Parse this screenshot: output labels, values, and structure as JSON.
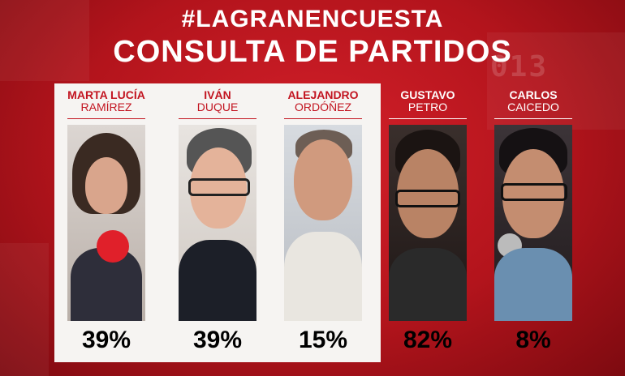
{
  "header": {
    "hashtag": "#LAGRANENCUESTA",
    "title": "CONSULTA DE PARTIDOS"
  },
  "background_digits": "013",
  "candidates": [
    {
      "first": "MARTA LUCÍA",
      "last": "RAMÍREZ",
      "percent": "39%",
      "percent_value": 39,
      "theme": "light"
    },
    {
      "first": "IVÁN",
      "last": "DUQUE",
      "percent": "39%",
      "percent_value": 39,
      "theme": "light"
    },
    {
      "first": "ALEJANDRO",
      "last": "ORDÓÑEZ",
      "percent": "15%",
      "percent_value": 15,
      "theme": "light"
    },
    {
      "first": "GUSTAVO",
      "last": "PETRO",
      "percent": "82%",
      "percent_value": 82,
      "theme": "dark"
    },
    {
      "first": "CARLOS",
      "last": "CAICEDO",
      "percent": "8%",
      "percent_value": 8,
      "theme": "dark"
    }
  ],
  "colors": {
    "brand_red": "#c21420",
    "panel": "#f6f4f2",
    "text_on_red": "#ffffff"
  }
}
